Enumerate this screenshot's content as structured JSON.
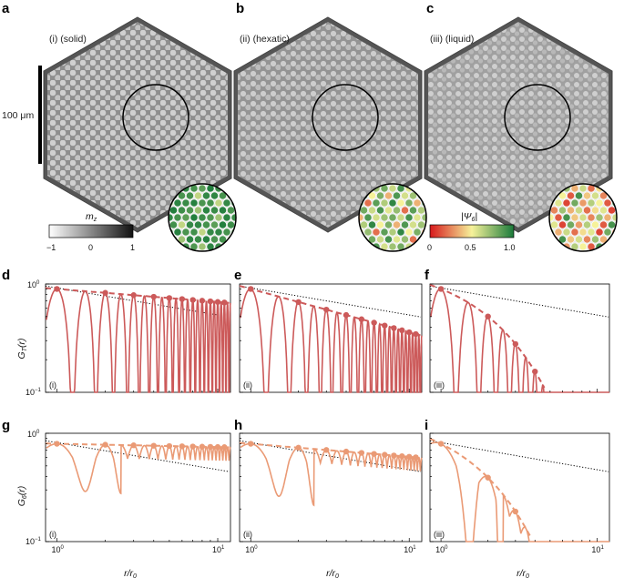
{
  "panel_letters": {
    "a": "a",
    "b": "b",
    "c": "c",
    "d": "d",
    "e": "e",
    "f": "f",
    "g": "g",
    "h": "h",
    "i": "i"
  },
  "images": [
    {
      "label": "(i) (solid)"
    },
    {
      "label": "(ii) (hexatic)"
    },
    {
      "label": "(iii) (liquid)"
    }
  ],
  "scale_bar_label": "100 μm",
  "mz_colorbar": {
    "label": "m",
    "label_sub": "z",
    "ticks": [
      "−1",
      "0",
      "1"
    ]
  },
  "psi_colorbar": {
    "label": "|Ψ",
    "label_sub": "6",
    "label_end": "|",
    "ticks": [
      "0",
      "0.5",
      "1.0"
    ]
  },
  "colors": {
    "gt": "#cc5a5a",
    "g6": "#ea9a75",
    "grid_dark": "#1a6b3a"
  },
  "plot_tags": [
    "(i)",
    "(ii)",
    "(iii)"
  ],
  "ylabels": {
    "row1": {
      "main": "G",
      "sub": "T",
      "end": "(r)"
    },
    "row2": {
      "main": "G",
      "sub": "6",
      "end": "(r)"
    }
  },
  "xlabel": {
    "main": "r/r",
    "sub": "0"
  },
  "y_ticks": {
    "top": "10",
    "top_exp": "0",
    "bot": "10",
    "bot_exp": "−1"
  },
  "x_ticks": {
    "left": "10",
    "left_exp": "0",
    "right": "10",
    "right_exp": "1"
  },
  "chart_data": [
    {
      "type": "line",
      "panel": "d",
      "title": "(i)",
      "ylabel": "G_T(r)",
      "xlabel": "r/r0",
      "xscale": "log",
      "yscale": "log",
      "xlim": [
        0.85,
        12
      ],
      "ylim": [
        0.1,
        1
      ],
      "envelope_decay": 0.12,
      "dashed_fit": "power-law",
      "dotted_reference": "r^-1/4"
    },
    {
      "type": "line",
      "panel": "e",
      "title": "(ii)",
      "ylabel": "G_T(r)",
      "xlabel": "r/r0",
      "xscale": "log",
      "yscale": "log",
      "xlim": [
        0.85,
        12
      ],
      "ylim": [
        0.1,
        1
      ],
      "envelope_decay": 0.4,
      "dashed_fit": "power-law",
      "dotted_reference": "r^-1/4"
    },
    {
      "type": "line",
      "panel": "f",
      "title": "(iii)",
      "ylabel": "G_T(r)",
      "xlabel": "r/r0",
      "xscale": "log",
      "yscale": "log",
      "xlim": [
        0.85,
        12
      ],
      "ylim": [
        0.1,
        1
      ],
      "envelope_decay": 0.65,
      "dashed_fit": "exponential",
      "dotted_reference": "r^-1/4"
    },
    {
      "type": "line",
      "panel": "g",
      "title": "(i)",
      "ylabel": "G_6(r)",
      "xlabel": "r/r0",
      "xscale": "log",
      "yscale": "log",
      "xlim": [
        0.85,
        12
      ],
      "ylim": [
        0.1,
        1
      ],
      "envelope_decay": 0.04,
      "dashed_fit": "constant",
      "dotted_reference": "r^-1/4"
    },
    {
      "type": "line",
      "panel": "h",
      "title": "(ii)",
      "ylabel": "G_6(r)",
      "xlabel": "r/r0",
      "xscale": "log",
      "yscale": "log",
      "xlim": [
        0.85,
        12
      ],
      "ylim": [
        0.1,
        1
      ],
      "envelope_decay": 0.12,
      "dashed_fit": "power-law",
      "dotted_reference": "r^-1/4"
    },
    {
      "type": "line",
      "panel": "i",
      "title": "(iii)",
      "ylabel": "G_6(r)",
      "xlabel": "r/r0",
      "xscale": "log",
      "yscale": "log",
      "xlim": [
        0.85,
        12
      ],
      "ylim": [
        0.1,
        1
      ],
      "envelope_decay": 0.8,
      "dashed_fit": "exponential",
      "dotted_reference": "r^-1/4"
    }
  ]
}
